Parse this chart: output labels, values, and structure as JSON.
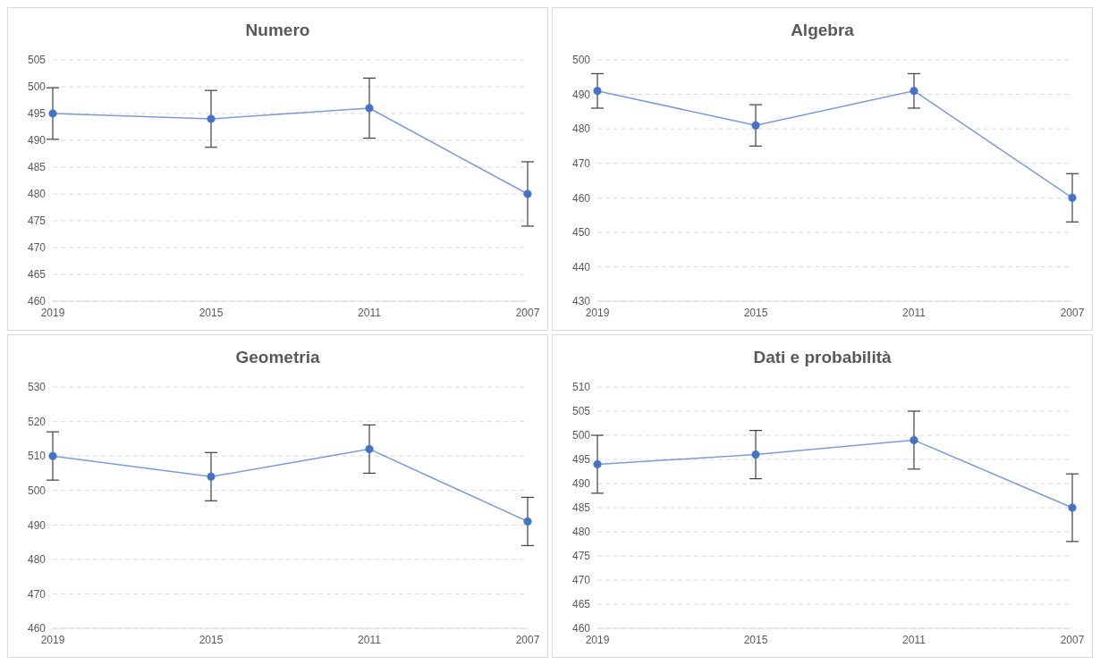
{
  "chart_data": [
    {
      "type": "line",
      "title": "Numero",
      "categories": [
        "2019",
        "2015",
        "2011",
        "2007"
      ],
      "values": [
        495,
        494,
        496,
        480
      ],
      "errors": [
        4.8,
        5.3,
        5.6,
        6
      ],
      "color": "#4472c4",
      "marker": "circle",
      "ylim": [
        460,
        505
      ],
      "yticks": [
        460,
        465,
        470,
        475,
        480,
        485,
        490,
        495,
        500,
        505
      ],
      "grid": "y",
      "line_style": "solid"
    },
    {
      "type": "line",
      "title": "Algebra",
      "categories": [
        "2019",
        "2015",
        "2011",
        "2007"
      ],
      "values": [
        491,
        481,
        491,
        460
      ],
      "errors": [
        5,
        6,
        5,
        7
      ],
      "color": "#4472c4",
      "marker": "circle",
      "ylim": [
        430,
        500
      ],
      "yticks": [
        430,
        440,
        450,
        460,
        470,
        480,
        490,
        500
      ],
      "grid": "y",
      "line_style": "solid"
    },
    {
      "type": "line",
      "title": "Geometria",
      "categories": [
        "2019",
        "2015",
        "2011",
        "2007"
      ],
      "values": [
        510,
        504,
        512,
        491
      ],
      "errors": [
        7,
        7,
        7,
        7
      ],
      "color": "#4472c4",
      "marker": "circle",
      "ylim": [
        460,
        530
      ],
      "yticks": [
        460,
        470,
        480,
        490,
        500,
        510,
        520,
        530
      ],
      "grid": "y",
      "line_style": "solid"
    },
    {
      "type": "line",
      "title": "Dati e probabilità",
      "categories": [
        "2019",
        "2015",
        "2011",
        "2007"
      ],
      "values": [
        494,
        496,
        499,
        485
      ],
      "errors": [
        6,
        5,
        6,
        7
      ],
      "color": "#4472c4",
      "marker": "circle",
      "ylim": [
        460,
        510
      ],
      "yticks": [
        460,
        465,
        470,
        475,
        480,
        485,
        490,
        495,
        500,
        505,
        510
      ],
      "grid": "y",
      "line_style": "solid"
    }
  ]
}
